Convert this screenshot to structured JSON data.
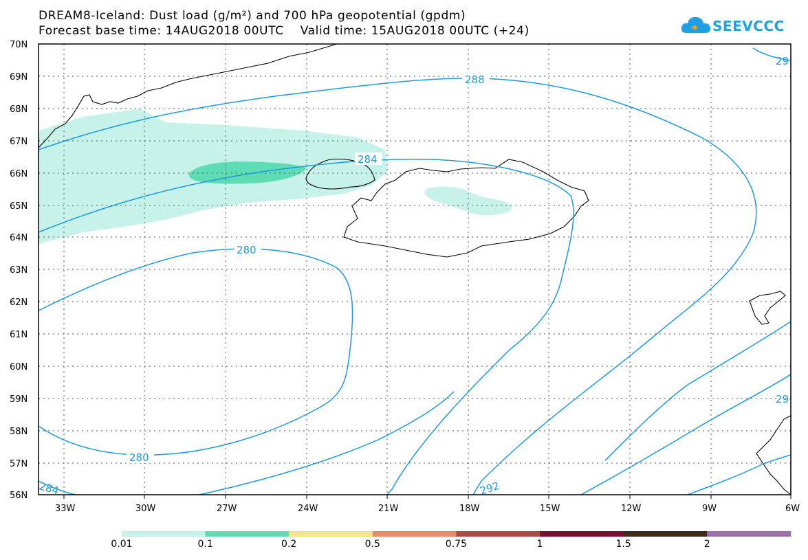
{
  "title": {
    "line1": "DREAM8-Iceland: Dust load (g/m²) and 700 hPa geopotential (gpdm)",
    "line2": "Forecast base time: 14AUG2018 00UTC    Valid time: 15AUG2018 00UTC (+24)"
  },
  "logo": {
    "text": "SEEVCCC"
  },
  "axes": {
    "lat_labels": [
      "70N",
      "69N",
      "68N",
      "67N",
      "66N",
      "65N",
      "64N",
      "63N",
      "62N",
      "61N",
      "60N",
      "59N",
      "58N",
      "57N",
      "56N"
    ],
    "lon_labels": [
      "33W",
      "30W",
      "27W",
      "24W",
      "21W",
      "18W",
      "15W",
      "12W",
      "9W",
      "6W"
    ]
  },
  "contour_labels": [
    {
      "text": "288"
    },
    {
      "text": "284"
    },
    {
      "text": "280"
    },
    {
      "text": "280"
    },
    {
      "text": "284"
    },
    {
      "text": "292"
    },
    {
      "text": "29"
    },
    {
      "text": "29"
    }
  ],
  "colorbar": {
    "colors": [
      "#c6f2ea",
      "#5edcb4",
      "#f3e58a",
      "#e38c68",
      "#a64e44",
      "#7a0f30",
      "#3f2b1e",
      "#9b70a8"
    ],
    "labels": [
      "0.01",
      "0.1",
      "0.2",
      "0.5",
      "0.75",
      "1",
      "1.5",
      "2"
    ]
  },
  "colors": {
    "contour": "#1a9ae0",
    "dust_low": "#c6f2ea",
    "dust_mid": "#5edcb4"
  }
}
